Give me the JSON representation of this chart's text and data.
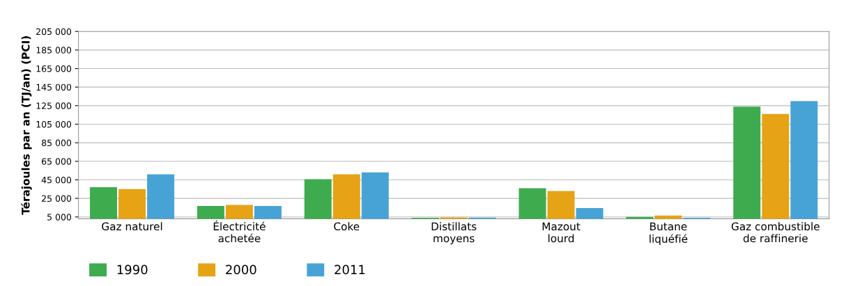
{
  "chart_data": {
    "type": "bar",
    "ylabel": "Térajoules par an (TJ/an) (PCI)",
    "categories": [
      "Gaz naturel",
      "Électricité\nachetée",
      "Coke",
      "Distillats\nmoyens",
      "Mazout\nlourd",
      "Butane\nliquéfié",
      "Gaz combustible\nde raffinerie"
    ],
    "series": [
      {
        "name": "1990",
        "color": "#3fab4f",
        "values": [
          37000,
          16800,
          45700,
          4000,
          36000,
          5000,
          124000
        ]
      },
      {
        "name": "2000",
        "color": "#e6a315",
        "values": [
          35000,
          18000,
          51000,
          4500,
          33000,
          6500,
          116000
        ]
      },
      {
        "name": "2011",
        "color": "#47a3d6",
        "values": [
          51000,
          16800,
          53000,
          4200,
          14600,
          4000,
          130000
        ]
      }
    ],
    "ylim": [
      3000,
      205000
    ],
    "yticks": [
      {
        "value": 5000,
        "label": "5 000"
      },
      {
        "value": 25000,
        "label": "25 000"
      },
      {
        "value": 45000,
        "label": "45 000"
      },
      {
        "value": 65000,
        "label": "65 000"
      },
      {
        "value": 85000,
        "label": "85 000"
      },
      {
        "value": 105000,
        "label": "105 000"
      },
      {
        "value": 125000,
        "label": "125 000"
      },
      {
        "value": 145000,
        "label": "145 000"
      },
      {
        "value": 165000,
        "label": "165 000"
      },
      {
        "value": 185000,
        "label": "185 000"
      },
      {
        "value": 205000,
        "label": "205 000"
      }
    ],
    "grid": "y",
    "legend": "bottom left"
  }
}
